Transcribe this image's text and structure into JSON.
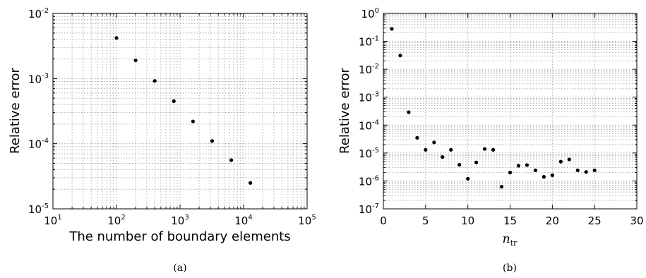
{
  "chart_data": [
    {
      "type": "scatter",
      "caption": "(a)",
      "xlabel": "The number of boundary elements",
      "ylabel": "Relative error",
      "xscale": "log",
      "yscale": "log",
      "xlim": [
        10,
        100000
      ],
      "ylim": [
        1e-05,
        0.01
      ],
      "grid": true,
      "xticks": [
        {
          "base": "10",
          "exp": "1",
          "value": 10
        },
        {
          "base": "10",
          "exp": "2",
          "value": 100
        },
        {
          "base": "10",
          "exp": "3",
          "value": 1000
        },
        {
          "base": "10",
          "exp": "4",
          "value": 10000
        },
        {
          "base": "10",
          "exp": "5",
          "value": 100000
        }
      ],
      "yticks": [
        {
          "base": "10",
          "exp": "-5",
          "value": 1e-05
        },
        {
          "base": "10",
          "exp": "-4",
          "value": 0.0001
        },
        {
          "base": "10",
          "exp": "-3",
          "value": 0.001
        },
        {
          "base": "10",
          "exp": "-2",
          "value": 0.01
        }
      ],
      "x": [
        100,
        200,
        400,
        800,
        1600,
        3200,
        6400,
        12800
      ],
      "y": [
        0.0042,
        0.0019,
        0.00092,
        0.00045,
        0.00022,
        0.00011,
        5.6e-05,
        2.5e-05
      ]
    },
    {
      "type": "scatter",
      "caption": "(b)",
      "xlabel_main": "n",
      "xlabel_sub": "tr",
      "ylabel": "Relative error",
      "xscale": "linear",
      "yscale": "log",
      "xlim": [
        0,
        30
      ],
      "ylim": [
        1e-07,
        1
      ],
      "grid": true,
      "xticks": [
        "0",
        "5",
        "10",
        "15",
        "20",
        "25",
        "30"
      ],
      "yticks": [
        {
          "base": "10",
          "exp": "-7",
          "value": 1e-07
        },
        {
          "base": "10",
          "exp": "-6",
          "value": 1e-06
        },
        {
          "base": "10",
          "exp": "-5",
          "value": 1e-05
        },
        {
          "base": "10",
          "exp": "-4",
          "value": 0.0001
        },
        {
          "base": "10",
          "exp": "-3",
          "value": 0.001
        },
        {
          "base": "10",
          "exp": "-2",
          "value": 0.01
        },
        {
          "base": "10",
          "exp": "-1",
          "value": 0.1
        },
        {
          "base": "10",
          "exp": "0",
          "value": 1
        }
      ],
      "x": [
        1,
        2,
        3,
        4,
        5,
        6,
        7,
        8,
        9,
        10,
        11,
        12,
        13,
        14,
        15,
        16,
        17,
        18,
        19,
        20,
        21,
        22,
        23,
        24,
        25
      ],
      "y": [
        0.28,
        0.031,
        0.00029,
        3.5e-05,
        1.3e-05,
        2.4e-05,
        7.2e-06,
        1.3e-05,
        3.8e-06,
        1.2e-06,
        4.6e-06,
        1.4e-05,
        1.3e-05,
        6.2e-07,
        2e-06,
        3.5e-06,
        3.7e-06,
        2.4e-06,
        1.4e-06,
        1.6e-06,
        4.9e-06,
        5.9e-06,
        2.4e-06,
        2.1e-06,
        2.4e-06
      ]
    }
  ]
}
